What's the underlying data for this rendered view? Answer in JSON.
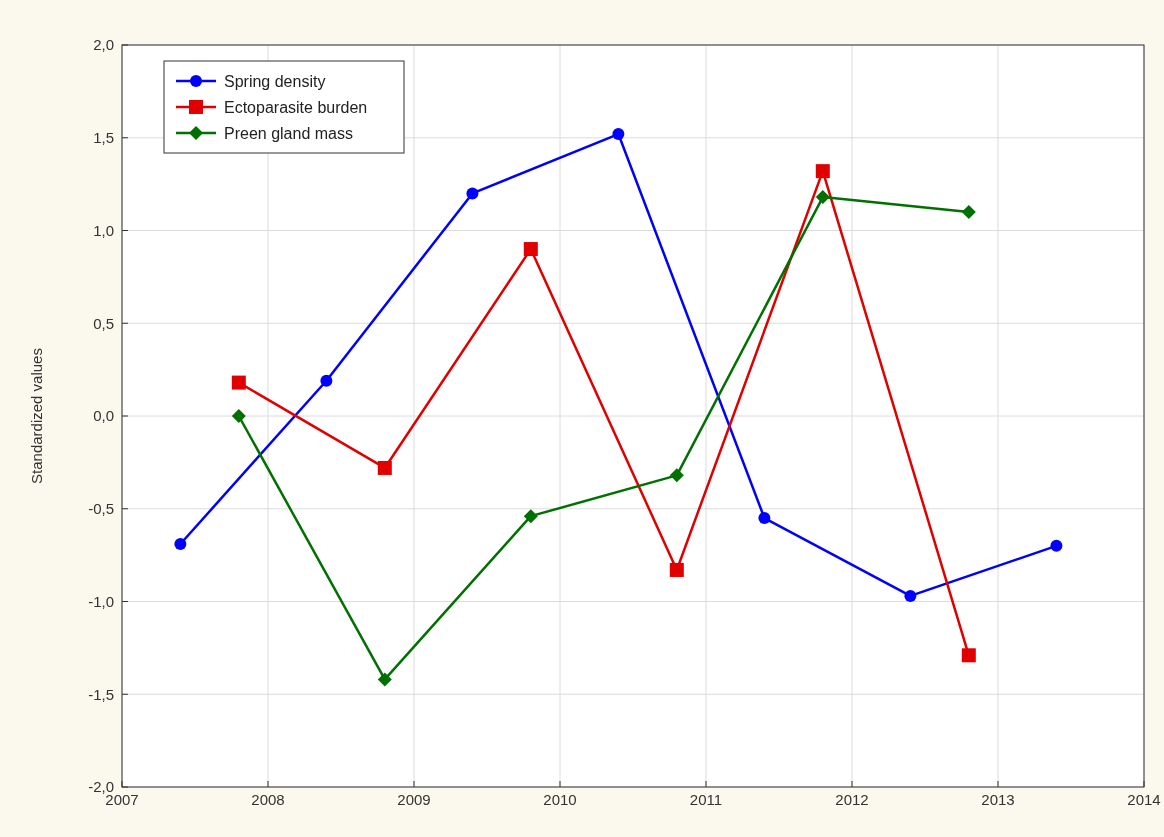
{
  "chart_data": {
    "type": "line",
    "ylabel": "Standardized values",
    "xlim": [
      2007,
      2014
    ],
    "xticks": [
      2007,
      2008,
      2009,
      2010,
      2011,
      2012,
      2013,
      2014
    ],
    "ylim": [
      -2,
      2
    ],
    "yticks": [
      {
        "value": -2,
        "label": "-2,0"
      },
      {
        "value": -1.5,
        "label": "-1,5"
      },
      {
        "value": -1,
        "label": "-1,0"
      },
      {
        "value": -0.5,
        "label": "-0,5"
      },
      {
        "value": 0,
        "label": "0,0"
      },
      {
        "value": 0.5,
        "label": "0,5"
      },
      {
        "value": 1,
        "label": "1,0"
      },
      {
        "value": 1.5,
        "label": "1,5"
      },
      {
        "value": 2,
        "label": "2,0"
      }
    ],
    "grid": true,
    "legend": "top left",
    "line_style": "solid",
    "series": [
      {
        "name": "Spring density",
        "color": "#0000ff",
        "marker": "circle",
        "x": [
          2007.4,
          2008.4,
          2009.4,
          2010.4,
          2011.4,
          2012.4,
          2013.4
        ],
        "values": [
          -0.69,
          0.19,
          1.2,
          1.52,
          -0.55,
          -0.97,
          -0.7
        ]
      },
      {
        "name": "Ectoparasite burden",
        "color": "#e00000",
        "marker": "square",
        "x": [
          2007.8,
          2008.8,
          2009.8,
          2010.8,
          2011.8,
          2012.8
        ],
        "values": [
          0.18,
          -0.28,
          0.9,
          -0.83,
          1.32,
          -1.29
        ]
      },
      {
        "name": "Preen gland mass",
        "color": "#007000",
        "marker": "diamond",
        "x": [
          2007.8,
          2008.8,
          2009.8,
          2010.8,
          2011.8,
          2012.8
        ],
        "values": [
          0,
          -1.42,
          -0.54,
          -0.32,
          1.18,
          1.1
        ]
      }
    ]
  }
}
